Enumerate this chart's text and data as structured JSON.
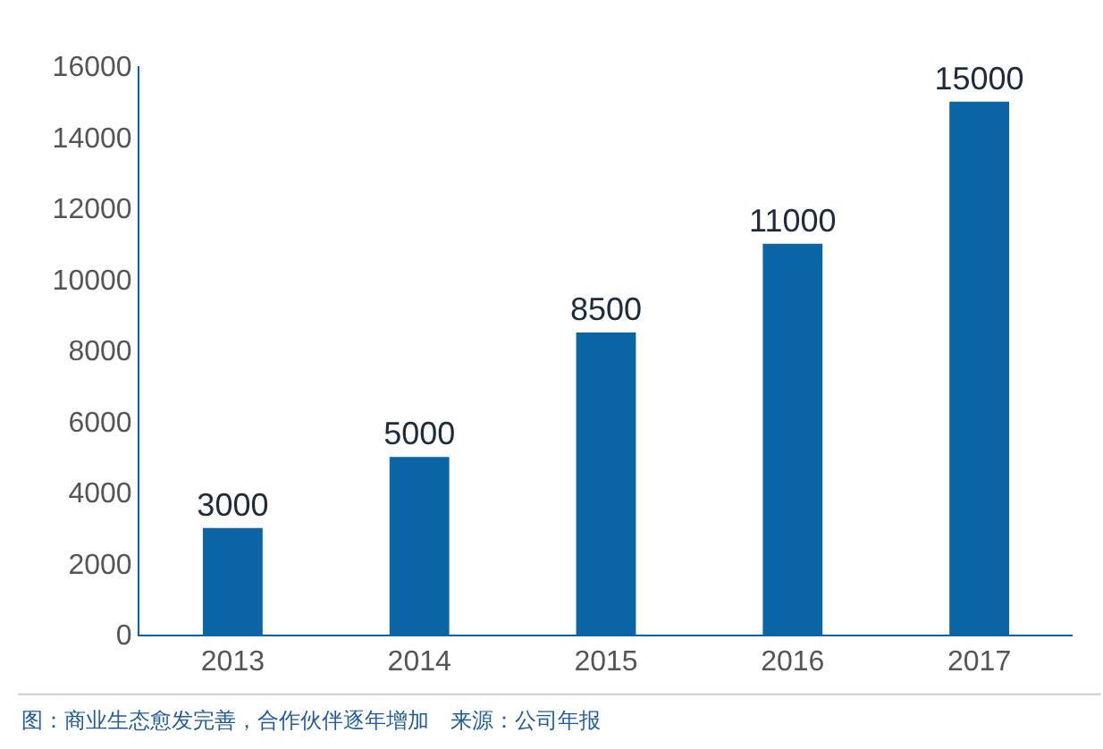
{
  "chart_data": {
    "type": "bar",
    "categories": [
      "2013",
      "2014",
      "2015",
      "2016",
      "2017"
    ],
    "values": [
      3000,
      5000,
      8500,
      11000,
      15000
    ],
    "color": "#0b64a3",
    "ylim": [
      0,
      16000
    ],
    "yticks": [
      0,
      2000,
      4000,
      6000,
      8000,
      10000,
      12000,
      14000,
      16000
    ],
    "grid": false,
    "data_labels": true,
    "annotations": [
      "图：商业生态愈发完善，合作伙伴逐年增加　来源：公司年报"
    ]
  }
}
